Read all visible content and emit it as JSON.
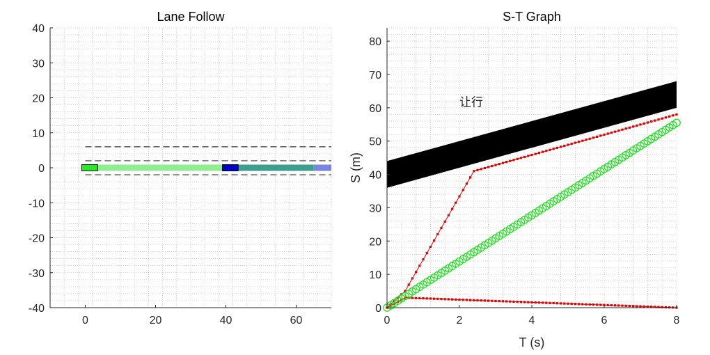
{
  "chart_data": [
    {
      "type": "scatter",
      "title": "Lane Follow",
      "xlabel": "",
      "ylabel": "",
      "xlim": [
        -10,
        70
      ],
      "ylim": [
        -40,
        40
      ],
      "xticks": [
        0,
        20,
        40,
        60
      ],
      "yticks": [
        40,
        30,
        20,
        10,
        0,
        -10,
        -20,
        -30,
        -40
      ],
      "xtick_labels": [
        "0",
        "20",
        "40",
        "60"
      ],
      "ytick_labels": [
        "40",
        "30",
        "20",
        "10",
        "0",
        "-10",
        "-20",
        "-30",
        "-40"
      ],
      "grid": "minor dotted",
      "lane_boundaries": [
        {
          "style": "dashed",
          "y": 6,
          "x": [
            0,
            70
          ]
        },
        {
          "style": "dashed",
          "y": 2,
          "x": [
            0,
            70
          ]
        },
        {
          "style": "dashed",
          "y": -2,
          "x": [
            0,
            70
          ]
        }
      ],
      "path_segments": [
        {
          "x": [
            3.5,
            39
          ],
          "y": 0,
          "color": "#90ee90"
        },
        {
          "x": [
            43.5,
            65
          ],
          "y": 0,
          "color": "#3e9e8e"
        },
        {
          "x": [
            65,
            70
          ],
          "y": 0,
          "color": "#7b84de"
        }
      ],
      "vehicles": [
        {
          "role": "ego",
          "x": [
            -1,
            3.5
          ],
          "y": [
            -0.9,
            0.9
          ],
          "color": "#22ee22"
        },
        {
          "role": "obstacle",
          "x": [
            39,
            43.5
          ],
          "y": [
            -0.9,
            0.9
          ],
          "color": "#0000cc"
        }
      ]
    },
    {
      "type": "line",
      "title": "S-T Graph",
      "xlabel": "T (s)",
      "ylabel": "S (m)",
      "xlim": [
        0,
        8
      ],
      "ylim": [
        0,
        84
      ],
      "xticks": [
        0,
        2,
        4,
        6,
        8
      ],
      "yticks": [
        0,
        10,
        20,
        30,
        40,
        50,
        60,
        70,
        80
      ],
      "xtick_labels": [
        "0",
        "2",
        "4",
        "6",
        "8"
      ],
      "ytick_labels": [
        "0",
        "10",
        "20",
        "30",
        "40",
        "50",
        "60",
        "70",
        "80"
      ],
      "grid": "minor dotted",
      "annotation": {
        "text": "让行",
        "x": 2.0,
        "y": 60.5
      },
      "obstacle_region": {
        "lower": {
          "t": [
            0,
            8
          ],
          "s": [
            36,
            60
          ]
        },
        "upper": {
          "t": [
            0,
            8
          ],
          "s": [
            44,
            68
          ]
        },
        "color": "#000000"
      },
      "series": [
        {
          "style": "red-dotted-bound",
          "t": [
            0,
            0.5,
            2.4,
            8
          ],
          "s": [
            0,
            5,
            41,
            58
          ]
        },
        {
          "style": "red-dotted-bound",
          "t": [
            0,
            0.5,
            8
          ],
          "s": [
            0,
            3,
            0
          ]
        },
        {
          "style": "green-circles",
          "t": [
            0,
            8
          ],
          "s": [
            0,
            55.5
          ]
        }
      ]
    }
  ]
}
